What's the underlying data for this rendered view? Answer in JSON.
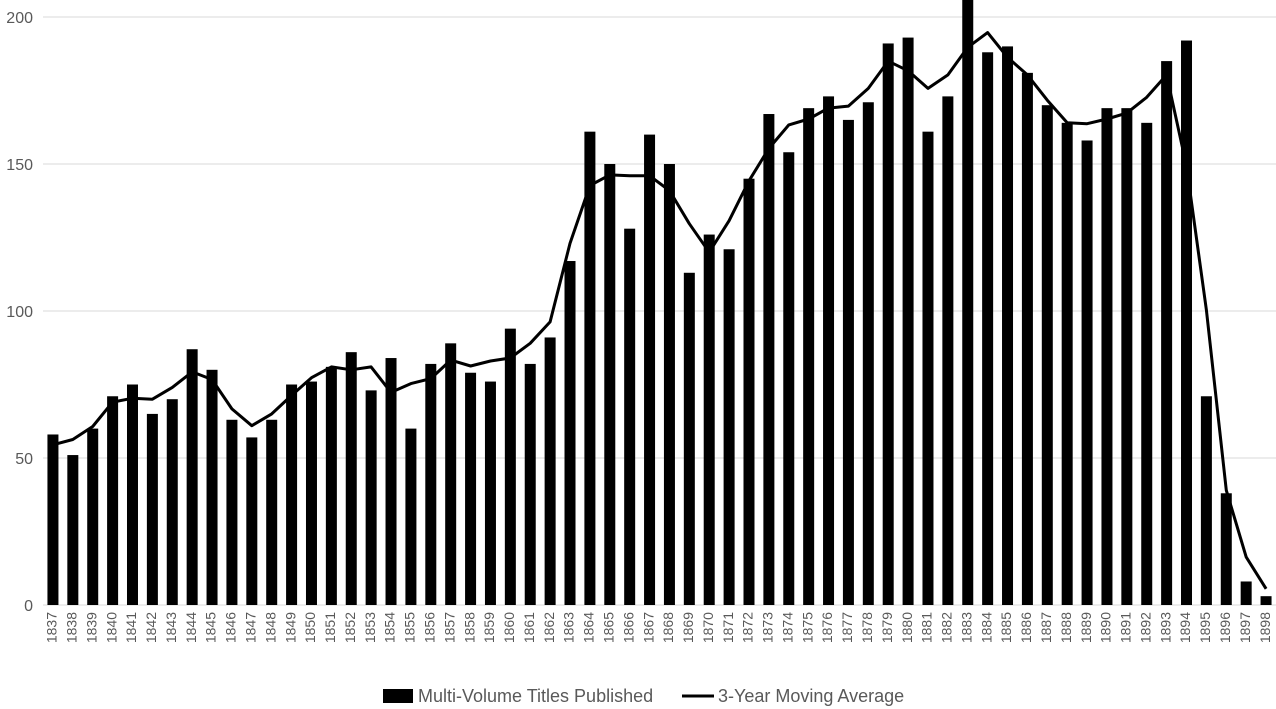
{
  "chart_data": {
    "type": "bar",
    "title": "",
    "xlabel": "",
    "ylabel": "",
    "ylim": [
      0,
      200
    ],
    "yticks": [
      0,
      50,
      100,
      150,
      200
    ],
    "grid": true,
    "legend_placement": "bottom",
    "categories": [
      "1837",
      "1838",
      "1839",
      "1840",
      "1841",
      "1842",
      "1843",
      "1844",
      "1845",
      "1846",
      "1847",
      "1848",
      "1849",
      "1850",
      "1851",
      "1852",
      "1853",
      "1854",
      "1855",
      "1856",
      "1857",
      "1858",
      "1859",
      "1860",
      "1861",
      "1862",
      "1863",
      "1864",
      "1865",
      "1866",
      "1867",
      "1868",
      "1869",
      "1870",
      "1871",
      "1872",
      "1873",
      "1874",
      "1875",
      "1876",
      "1877",
      "1878",
      "1879",
      "1880",
      "1881",
      "1882",
      "1883",
      "1884",
      "1885",
      "1886",
      "1887",
      "1888",
      "1889",
      "1890",
      "1891",
      "1892",
      "1893",
      "1894",
      "1895",
      "1896",
      "1897",
      "1898"
    ],
    "series": [
      {
        "name": "Multi-Volume Titles Published",
        "kind": "bar",
        "color": "#000000",
        "values": [
          58,
          51,
          60,
          71,
          75,
          65,
          70,
          87,
          80,
          63,
          57,
          63,
          75,
          76,
          81,
          86,
          73,
          84,
          60,
          82,
          89,
          79,
          76,
          94,
          82,
          91,
          117,
          161,
          150,
          128,
          160,
          150,
          113,
          126,
          121,
          145,
          167,
          154,
          169,
          173,
          165,
          171,
          191,
          193,
          161,
          173,
          208,
          188,
          190,
          181,
          170,
          164,
          158,
          169,
          169,
          164,
          185,
          192,
          71,
          38,
          8,
          3
        ]
      },
      {
        "name": "3-Year Moving Average",
        "kind": "line",
        "color": "#000000",
        "values": [
          54.5,
          56.3,
          60.7,
          69.0,
          70.3,
          70.0,
          74.0,
          79.3,
          76.7,
          66.7,
          61.0,
          65.0,
          71.3,
          77.3,
          81.0,
          80.0,
          81.0,
          72.3,
          75.3,
          77.0,
          83.3,
          81.3,
          83.0,
          84.0,
          89.0,
          96.3,
          123.0,
          142.7,
          146.3,
          146.0,
          146.0,
          141.0,
          129.7,
          120.0,
          130.7,
          144.3,
          155.3,
          163.3,
          165.3,
          169.0,
          169.7,
          175.7,
          185.0,
          181.7,
          175.7,
          180.3,
          189.7,
          194.7,
          186.3,
          180.3,
          171.7,
          164.0,
          163.7,
          165.3,
          167.3,
          172.7,
          180.3,
          149.3,
          100.3,
          39.0,
          16.3,
          5.5
        ]
      }
    ]
  },
  "legend": [
    {
      "label": "Multi-Volume Titles Published",
      "swatch": "bar"
    },
    {
      "label": "3-Year Moving Average",
      "swatch": "line"
    }
  ]
}
